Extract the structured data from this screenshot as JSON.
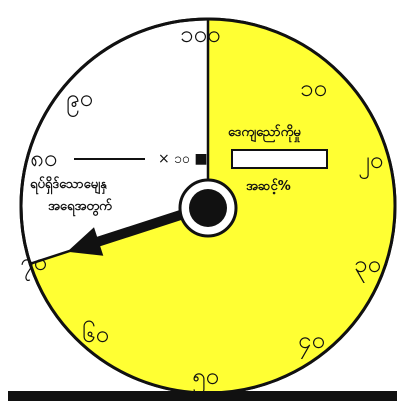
{
  "dial": {
    "ticks": {
      "t100": "၁၀၀",
      "t10": "၁၀",
      "t20": "၂၀",
      "t30": "၃၀",
      "t40": "၄၀",
      "t50": "၅၀",
      "t60": "၆၀",
      "t70": "၇၀",
      "t80": "၈၀",
      "t90": "၉၀"
    },
    "filled_percent": 70,
    "needle_value": 70,
    "colors": {
      "fill": "#ffff33",
      "background": "#ffffff",
      "stroke": "#111111"
    }
  },
  "formula": {
    "numerator_value": "၈၀",
    "multiply_text": "× ၁၀ ■",
    "denominator_label_line1": "ရပ်ရှိဒ်သောမျေနှ",
    "denominator_label_line2": "အရေအတွက်"
  },
  "result": {
    "label": "ဒေကျညော်ကိုမှု",
    "unit_label": "အဆင့်%"
  }
}
